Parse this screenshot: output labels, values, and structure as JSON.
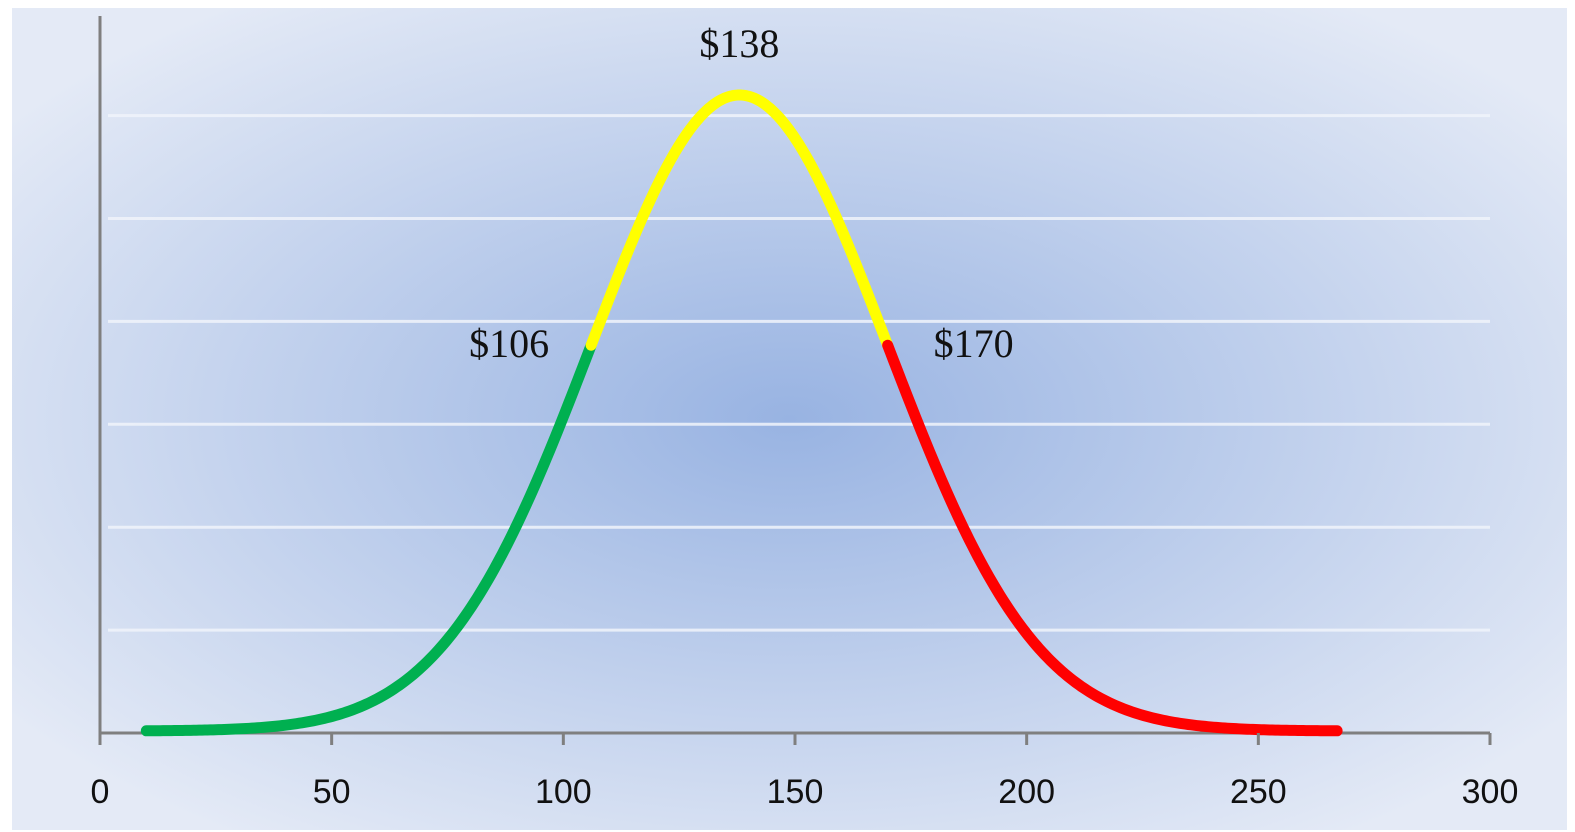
{
  "chart_data": {
    "type": "line",
    "title": "",
    "xlabel": "",
    "ylabel": "",
    "xlim": [
      0,
      300
    ],
    "x_ticks": [
      "0",
      "50",
      "100",
      "150",
      "200",
      "250",
      "300"
    ],
    "grid": "horizontal",
    "y_tick_labels_shown": false,
    "distribution": {
      "shape": "normal",
      "mean": 138,
      "std_dev": 32,
      "x_start": 10,
      "x_end": 267
    },
    "series": [
      {
        "x_range": [
          10,
          106
        ],
        "color": "#00b050"
      },
      {
        "x_range": [
          106,
          170
        ],
        "color": "#ffff00"
      },
      {
        "x_range": [
          170,
          267
        ],
        "color": "#ff0000"
      }
    ],
    "annotations": [
      {
        "text": "$106",
        "x": 106,
        "side": "left"
      },
      {
        "text": "$138",
        "x": 138,
        "side": "top"
      },
      {
        "text": "$170",
        "x": 170,
        "side": "right"
      }
    ],
    "colors": {
      "background_center": "#98b3e2",
      "background_edge": "#e4eaf6",
      "axis": "#7f7f7f",
      "gridline": "#f0f3fa"
    }
  }
}
